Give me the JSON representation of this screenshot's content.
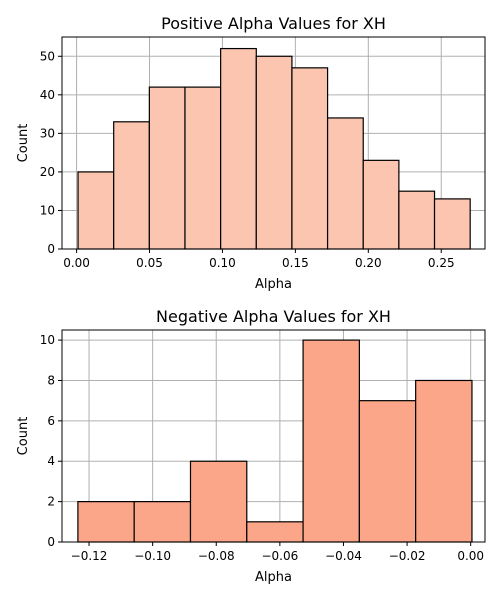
{
  "chart_data": [
    {
      "type": "bar",
      "subtype": "histogram",
      "title": "Positive Alpha Values for XH",
      "xlabel": "Alpha",
      "ylabel": "Count",
      "xlim": [
        -0.01,
        0.28
      ],
      "ylim": [
        0,
        55
      ],
      "xticks": [
        0.0,
        0.05,
        0.1,
        0.15,
        0.2,
        0.25
      ],
      "xtick_labels": [
        "0.00",
        "0.05",
        "0.10",
        "0.15",
        "0.20",
        "0.25"
      ],
      "yticks": [
        0,
        10,
        20,
        30,
        40,
        50
      ],
      "ytick_labels": [
        "0",
        "10",
        "20",
        "30",
        "40",
        "50"
      ],
      "bin_edges": [
        0.001,
        0.02544,
        0.04988,
        0.07432,
        0.09876,
        0.1232,
        0.14764,
        0.17208,
        0.19652,
        0.22096,
        0.2454,
        0.26984
      ],
      "values": [
        20,
        33,
        42,
        42,
        52,
        50,
        47,
        34,
        23,
        15,
        13
      ],
      "color": "#fcc5b0",
      "grid": true
    },
    {
      "type": "bar",
      "subtype": "histogram",
      "title": "Negative Alpha Values for XH",
      "xlabel": "Alpha",
      "ylabel": "Count",
      "xlim": [
        -0.1285,
        0.0045
      ],
      "ylim": [
        0,
        10.5
      ],
      "xticks": [
        -0.12,
        -0.1,
        -0.08,
        -0.06,
        -0.04,
        -0.02,
        0.0
      ],
      "xtick_labels": [
        "−0.12",
        "−0.10",
        "−0.08",
        "−0.06",
        "−0.04",
        "−0.02",
        "0.00"
      ],
      "yticks": [
        0,
        2,
        4,
        6,
        8,
        10
      ],
      "ytick_labels": [
        "0",
        "2",
        "4",
        "6",
        "8",
        "10"
      ],
      "bin_edges": [
        -0.1235,
        -0.1058,
        -0.0881,
        -0.0704,
        -0.0527,
        -0.035,
        -0.0173,
        0.0004
      ],
      "values": [
        2,
        2,
        4,
        1,
        10,
        7,
        8
      ],
      "color": "#fca689",
      "grid": true
    }
  ]
}
